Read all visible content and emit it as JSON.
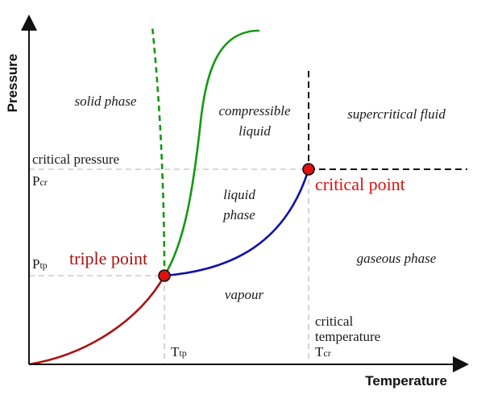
{
  "axes": {
    "x_title": "Temperature",
    "y_title": "Pressure"
  },
  "regions": {
    "solid": "solid phase",
    "compressible_line1": "compressible",
    "compressible_line2": "liquid",
    "supercritical": "supercritical fluid",
    "liquid_line1": "liquid",
    "liquid_line2": "phase",
    "gaseous": "gaseous phase",
    "vapour": "vapour"
  },
  "pressure_labels": {
    "critical_pressure": "critical pressure",
    "p_cr_main": "P",
    "p_cr_sub": "cr",
    "p_tp_main": "P",
    "p_tp_sub": "tp"
  },
  "temperature_labels": {
    "t_tp_main": "T",
    "t_tp_sub": "tp",
    "critical_line1": "critical",
    "critical_line2": "temperature",
    "t_cr_main": "T",
    "t_cr_sub": "cr"
  },
  "points": {
    "triple_point": "triple point",
    "critical_point": "critical point"
  },
  "colors": {
    "sublimation_curve": "#aa1111",
    "vaporization_curve": "#1111aa",
    "melting_curve": "#119911",
    "point_fill": "#dd1111",
    "triple_label": "#aa1111",
    "critical_label": "#dd1111",
    "guide_lines": "#cccccc"
  }
}
